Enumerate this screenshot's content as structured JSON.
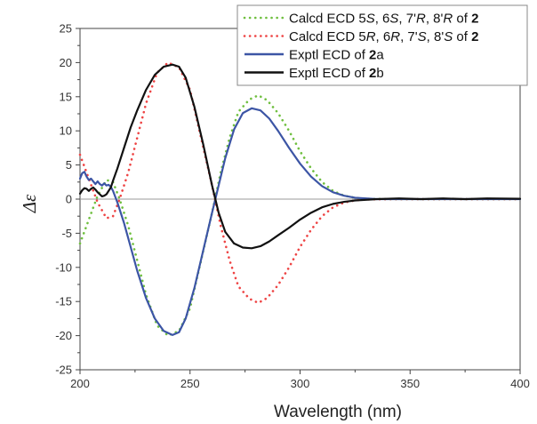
{
  "chart_data": {
    "type": "line",
    "xlabel": "Wavelength (nm)",
    "ylabel_symbol": "Δε",
    "xlim": [
      200,
      400
    ],
    "ylim": [
      -25,
      25
    ],
    "x_ticks": [
      200,
      250,
      300,
      350,
      400
    ],
    "y_ticks": [
      -25,
      -20,
      -15,
      -10,
      -5,
      0,
      5,
      10,
      15,
      20,
      25
    ],
    "grid": false,
    "zero_line": true,
    "legend_position": "top-right",
    "series": [
      {
        "name": "Calcd ECD 5S, 6S, 7'R, 8'R of 2",
        "legend_parts": [
          {
            "t": "Calcd ECD 5",
            "s": ""
          },
          {
            "t": "S",
            "s": "it"
          },
          {
            "t": ", 6",
            "s": ""
          },
          {
            "t": "S",
            "s": "it"
          },
          {
            "t": ", 7'",
            "s": ""
          },
          {
            "t": "R",
            "s": "it"
          },
          {
            "t": ", 8'",
            "s": ""
          },
          {
            "t": "R",
            "s": "it"
          },
          {
            "t": " of ",
            "s": ""
          },
          {
            "t": "2",
            "s": "bd"
          }
        ],
        "color": "#6fbf3f",
        "style": "dotted",
        "points": [
          [
            200,
            -6.5
          ],
          [
            204,
            -3
          ],
          [
            208,
            0.5
          ],
          [
            212,
            2.8
          ],
          [
            215,
            2.5
          ],
          [
            218,
            0
          ],
          [
            222,
            -4
          ],
          [
            226,
            -9
          ],
          [
            230,
            -14
          ],
          [
            235,
            -18.5
          ],
          [
            240,
            -20
          ],
          [
            245,
            -19.3
          ],
          [
            250,
            -16
          ],
          [
            255,
            -9
          ],
          [
            260,
            -2
          ],
          [
            264,
            4
          ],
          [
            268,
            9
          ],
          [
            272,
            12.8
          ],
          [
            277,
            14.6
          ],
          [
            281,
            15.2
          ],
          [
            285,
            14.5
          ],
          [
            290,
            12.6
          ],
          [
            295,
            10
          ],
          [
            300,
            7
          ],
          [
            305,
            4.5
          ],
          [
            310,
            2.5
          ],
          [
            315,
            1.2
          ],
          [
            320,
            0.5
          ],
          [
            325,
            0.2
          ],
          [
            330,
            0.05
          ],
          [
            340,
            0
          ],
          [
            400,
            0
          ]
        ]
      },
      {
        "name": "Calcd ECD 5R, 6R, 7'S, 8'S of 2",
        "legend_parts": [
          {
            "t": "Calcd ECD 5",
            "s": ""
          },
          {
            "t": "R",
            "s": "it"
          },
          {
            "t": ", 6",
            "s": ""
          },
          {
            "t": "R",
            "s": "it"
          },
          {
            "t": ", 7'",
            "s": ""
          },
          {
            "t": "S",
            "s": "it"
          },
          {
            "t": ", 8'",
            "s": ""
          },
          {
            "t": "S",
            "s": "it"
          },
          {
            "t": " of ",
            "s": ""
          },
          {
            "t": "2",
            "s": "bd"
          }
        ],
        "color": "#ee4444",
        "style": "dotted",
        "points": [
          [
            200,
            6.5
          ],
          [
            204,
            3
          ],
          [
            208,
            -0.5
          ],
          [
            212,
            -2.8
          ],
          [
            215,
            -2.5
          ],
          [
            218,
            0
          ],
          [
            222,
            4
          ],
          [
            226,
            9
          ],
          [
            230,
            14
          ],
          [
            235,
            18.5
          ],
          [
            240,
            20
          ],
          [
            245,
            19.3
          ],
          [
            250,
            16
          ],
          [
            255,
            9
          ],
          [
            260,
            2
          ],
          [
            264,
            -4
          ],
          [
            268,
            -9
          ],
          [
            272,
            -12.8
          ],
          [
            277,
            -14.6
          ],
          [
            281,
            -15.2
          ],
          [
            285,
            -14.5
          ],
          [
            290,
            -12.6
          ],
          [
            295,
            -10
          ],
          [
            300,
            -7
          ],
          [
            305,
            -4.5
          ],
          [
            310,
            -2.5
          ],
          [
            315,
            -1.2
          ],
          [
            320,
            -0.5
          ],
          [
            325,
            -0.2
          ],
          [
            330,
            -0.05
          ],
          [
            340,
            0
          ],
          [
            400,
            0
          ]
        ]
      },
      {
        "name": "Exptl ECD of 2a",
        "legend_parts": [
          {
            "t": "Exptl ECD of ",
            "s": ""
          },
          {
            "t": "2",
            "s": "bd"
          },
          {
            "t": "a",
            "s": ""
          }
        ],
        "color": "#3c55a5",
        "style": "solid",
        "points": [
          [
            200,
            3
          ],
          [
            201,
            3.8
          ],
          [
            202,
            4
          ],
          [
            203,
            3.3
          ],
          [
            204,
            2.8
          ],
          [
            205,
            3
          ],
          [
            206,
            2.6
          ],
          [
            207,
            2.2
          ],
          [
            208,
            2.6
          ],
          [
            209,
            2.2
          ],
          [
            210,
            2
          ],
          [
            211,
            2.3
          ],
          [
            212,
            2
          ],
          [
            213,
            2.1
          ],
          [
            214,
            1.8
          ],
          [
            215,
            1.2
          ],
          [
            217,
            -0.5
          ],
          [
            220,
            -3.5
          ],
          [
            223,
            -7
          ],
          [
            226,
            -10.5
          ],
          [
            230,
            -14.5
          ],
          [
            234,
            -17.5
          ],
          [
            238,
            -19.3
          ],
          [
            242,
            -19.9
          ],
          [
            245,
            -19.5
          ],
          [
            248,
            -17.5
          ],
          [
            252,
            -13
          ],
          [
            256,
            -7.5
          ],
          [
            260,
            -2
          ],
          [
            263,
            2
          ],
          [
            266,
            6
          ],
          [
            270,
            10.2
          ],
          [
            274,
            12.6
          ],
          [
            278,
            13.3
          ],
          [
            282,
            13
          ],
          [
            286,
            11.8
          ],
          [
            290,
            10
          ],
          [
            295,
            7.5
          ],
          [
            300,
            5.2
          ],
          [
            305,
            3.3
          ],
          [
            310,
            1.9
          ],
          [
            315,
            1
          ],
          [
            320,
            0.5
          ],
          [
            325,
            0.2
          ],
          [
            330,
            0.1
          ],
          [
            335,
            0
          ],
          [
            400,
            0
          ]
        ]
      },
      {
        "name": "Exptl ECD of 2b",
        "legend_parts": [
          {
            "t": "Exptl ECD of ",
            "s": ""
          },
          {
            "t": "2",
            "s": "bd"
          },
          {
            "t": "b",
            "s": ""
          }
        ],
        "color": "#111111",
        "style": "solid",
        "points": [
          [
            200,
            0.8
          ],
          [
            201,
            1.3
          ],
          [
            202,
            1.6
          ],
          [
            203,
            1.5
          ],
          [
            204,
            1.2
          ],
          [
            205,
            1.5
          ],
          [
            206,
            1.7
          ],
          [
            207,
            1.4
          ],
          [
            208,
            1
          ],
          [
            209,
            0.7
          ],
          [
            210,
            0.4
          ],
          [
            211,
            0.5
          ],
          [
            212,
            0.7
          ],
          [
            213,
            1.2
          ],
          [
            214,
            1.7
          ],
          [
            215,
            2.7
          ],
          [
            217,
            4.5
          ],
          [
            220,
            7.5
          ],
          [
            223,
            10.5
          ],
          [
            226,
            13
          ],
          [
            230,
            16
          ],
          [
            234,
            18.2
          ],
          [
            238,
            19.4
          ],
          [
            242,
            19.7
          ],
          [
            245,
            19.4
          ],
          [
            248,
            17.8
          ],
          [
            252,
            13.5
          ],
          [
            256,
            8
          ],
          [
            260,
            2
          ],
          [
            263,
            -2
          ],
          [
            266,
            -4.8
          ],
          [
            270,
            -6.5
          ],
          [
            274,
            -7.1
          ],
          [
            278,
            -7.2
          ],
          [
            282,
            -6.9
          ],
          [
            286,
            -6.2
          ],
          [
            290,
            -5.3
          ],
          [
            295,
            -4.2
          ],
          [
            300,
            -3
          ],
          [
            305,
            -2
          ],
          [
            310,
            -1.2
          ],
          [
            315,
            -0.7
          ],
          [
            320,
            -0.4
          ],
          [
            325,
            -0.2
          ],
          [
            330,
            -0.1
          ],
          [
            335,
            0
          ],
          [
            345,
            0.1
          ],
          [
            355,
            0
          ],
          [
            365,
            0.1
          ],
          [
            375,
            0
          ],
          [
            385,
            0.1
          ],
          [
            400,
            0.05
          ]
        ]
      }
    ]
  }
}
